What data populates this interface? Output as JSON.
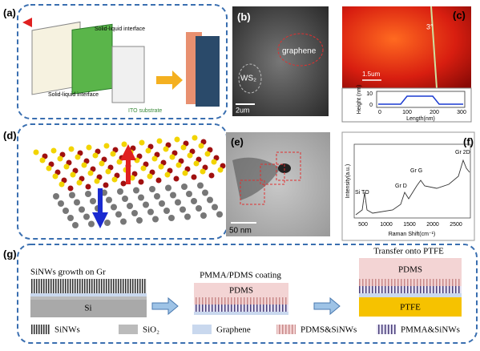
{
  "panels": {
    "a": {
      "label": "(a)",
      "texts": [
        "Solid-liquid interface",
        "Solid-liquid interface",
        "ITO substrate"
      ]
    },
    "b": {
      "label": "(b)",
      "graphene": "graphene",
      "ws2": "WS₂",
      "scale": "2um"
    },
    "c": {
      "label": "(c)",
      "angle": "3°",
      "scale": "1.5um",
      "ylabel": "Height (nm)",
      "yticks": [
        "10",
        "0"
      ],
      "xlabel": "Length(nm)",
      "xticks": [
        "0",
        "100",
        "200",
        "300"
      ]
    },
    "d": {
      "label": "(d)"
    },
    "e": {
      "label": "(e)",
      "scale": "50 nm"
    },
    "f": {
      "label": "(f)",
      "peaks": [
        "Gr 2D",
        "Gr G",
        "Gr D",
        "Si TO"
      ],
      "ylabel": "Intensity(a.u.)",
      "xlabel": "Raman Shift(cm⁻¹)",
      "xticks": [
        "500",
        "1000",
        "1500",
        "2000",
        "2500"
      ]
    },
    "g": {
      "label": "(g)",
      "steps": [
        {
          "title": "SiNWs growth on Gr",
          "layers": [
            "Si"
          ]
        },
        {
          "title": "PMMA/PDMS coating",
          "layers": [
            "PDMS"
          ]
        },
        {
          "title": "Transfer onto PTFE",
          "layers": [
            "PDMS",
            "PTFE"
          ]
        }
      ],
      "legend": [
        "SiNWs",
        "SiO₂",
        "Graphene",
        "PDMS&SiNWs",
        "PMMA&SiNWs"
      ]
    }
  }
}
